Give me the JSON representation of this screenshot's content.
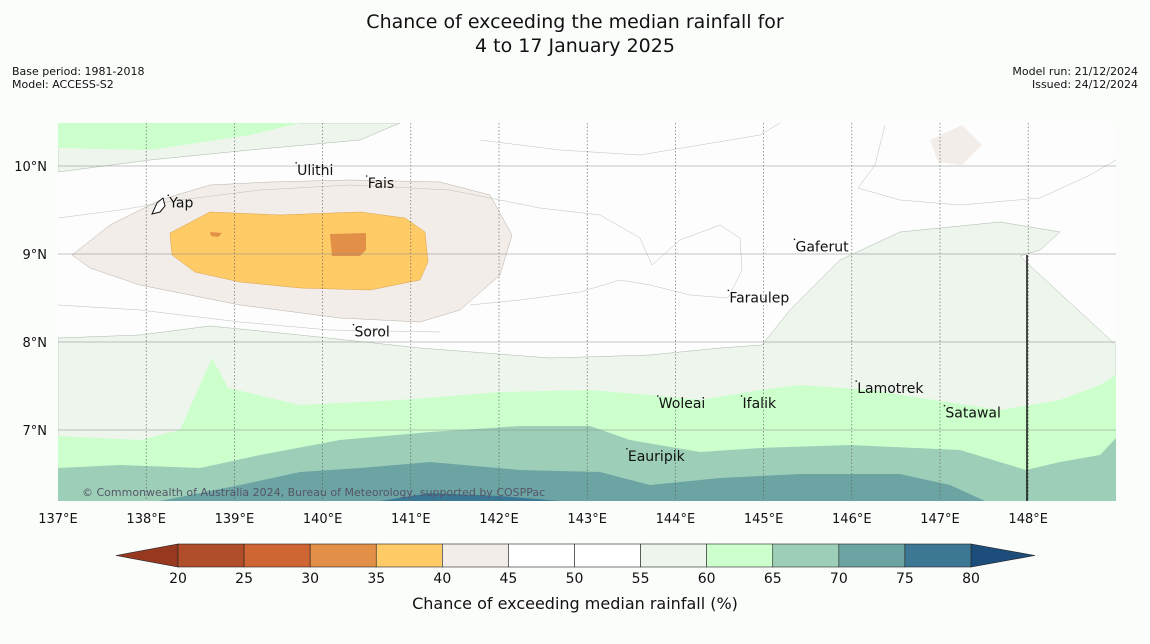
{
  "title": {
    "line1": "Chance of exceeding the median rainfall for",
    "line2": "4 to 17 January 2025"
  },
  "meta": {
    "base_period": "Base period: 1981-2018",
    "model": "Model: ACCESS-S2",
    "model_run": "Model run: 21/12/2024",
    "issued": "Issued: 24/12/2024"
  },
  "map": {
    "lon_ticks": [
      "137°E",
      "138°E",
      "139°E",
      "140°E",
      "141°E",
      "142°E",
      "143°E",
      "144°E",
      "145°E",
      "146°E",
      "147°E",
      "148°E"
    ],
    "lat_ticks": [
      "10°N",
      "9°N",
      "8°N",
      "7°N"
    ],
    "places": [
      {
        "name": "Yap",
        "lon": 138.25,
        "lat": 9.53
      },
      {
        "name": "Ulithi",
        "lon": 139.7,
        "lat": 9.9
      },
      {
        "name": "Fais",
        "lon": 140.5,
        "lat": 9.75
      },
      {
        "name": "Gaferut",
        "lon": 145.35,
        "lat": 9.03
      },
      {
        "name": "Faraulep",
        "lon": 144.6,
        "lat": 8.45
      },
      {
        "name": "Sorol",
        "lon": 140.35,
        "lat": 8.06
      },
      {
        "name": "Lamotrek",
        "lon": 146.05,
        "lat": 7.42
      },
      {
        "name": "Woleai",
        "lon": 143.8,
        "lat": 7.25
      },
      {
        "name": "Ifalik",
        "lon": 144.75,
        "lat": 7.25
      },
      {
        "name": "Satawal",
        "lon": 147.05,
        "lat": 7.14
      },
      {
        "name": "Eauripik",
        "lon": 143.45,
        "lat": 6.65
      }
    ],
    "copyright": "© Commonwealth of Australia 2024, Bureau of Meteorology, supported by COSPPac"
  },
  "colorbar": {
    "label": "Chance of exceeding median rainfall (%)",
    "ticks": [
      "20",
      "25",
      "30",
      "35",
      "40",
      "45",
      "50",
      "55",
      "60",
      "65",
      "70",
      "75",
      "80"
    ],
    "colors": [
      "#b14e2a",
      "#cf6533",
      "#e29048",
      "#fecb66",
      "#f2ede8",
      "#ffffff",
      "#ffffff",
      "#edf5ec",
      "#ccffcc",
      "#9dcfb8",
      "#6ca4a4",
      "#3c7793"
    ],
    "under_color": "#97391f",
    "over_color": "#1d4e7b"
  }
}
